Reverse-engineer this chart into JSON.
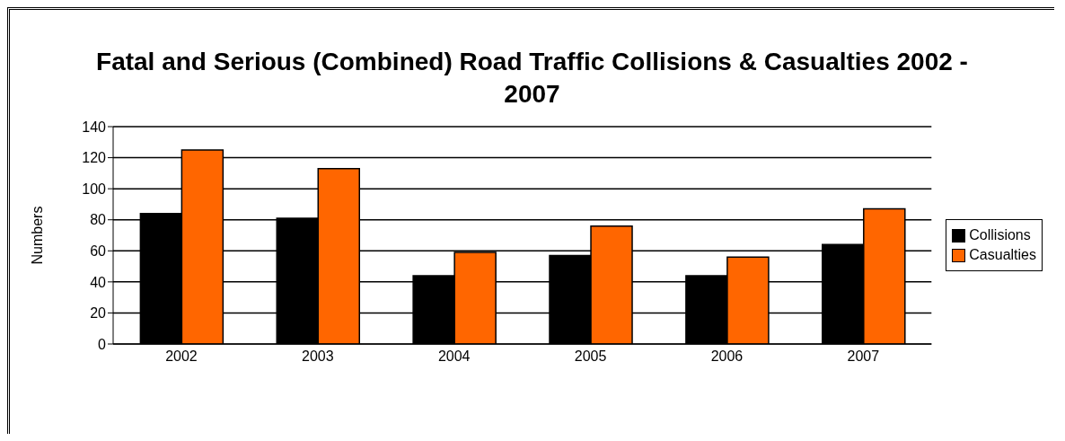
{
  "chart_data": {
    "type": "bar",
    "title": "Fatal and Serious (Combined) Road Traffic Collisions & Casualties 2002 - 2007",
    "ylabel": "Numbers",
    "categories": [
      "2002",
      "2003",
      "2004",
      "2005",
      "2006",
      "2007"
    ],
    "series": [
      {
        "name": "Collisions",
        "color": "#000000",
        "values": [
          84,
          81,
          44,
          57,
          44,
          64
        ]
      },
      {
        "name": "Casualties",
        "color": "#ff6600",
        "values": [
          125,
          113,
          59,
          76,
          56,
          87
        ]
      }
    ],
    "ylim": [
      0,
      140
    ],
    "yticks": [
      0,
      20,
      40,
      60,
      80,
      100,
      120,
      140
    ],
    "grid": "y",
    "legend": "right"
  }
}
